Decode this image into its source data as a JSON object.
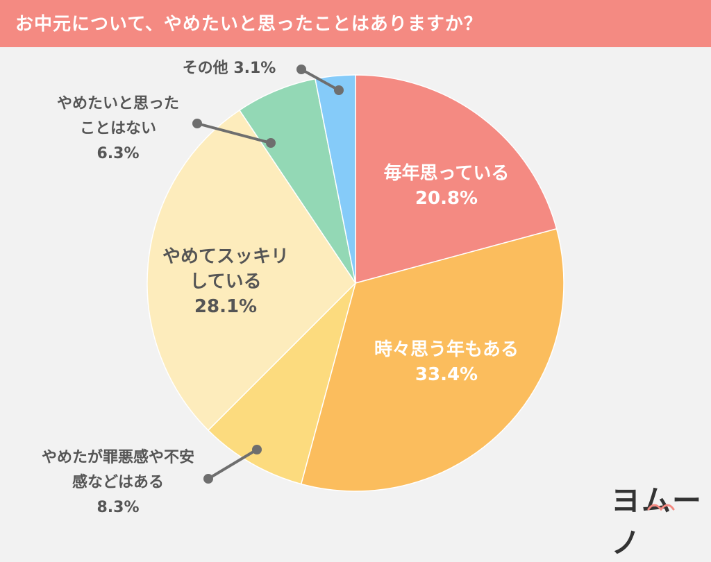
{
  "header": {
    "title": "お中元について、やめたいと思ったことはありますか？"
  },
  "chart_data": {
    "type": "pie",
    "title": "お中元について、やめたいと思ったことはありますか？",
    "start": "12 o'clock",
    "direction": "clockwise",
    "slices": [
      {
        "label": [
          "毎年思っている"
        ],
        "value": 20.8,
        "value_label": "20.8%",
        "color": "#f48a82",
        "label_color": "#ffffff",
        "label_placement": "inside"
      },
      {
        "label": [
          "時々思う年もある"
        ],
        "value": 33.4,
        "value_label": "33.4%",
        "color": "#fbbd5d",
        "label_color": "#ffffff",
        "label_placement": "inside"
      },
      {
        "label": [
          "やめたが罪悪感や不安",
          "感などはある"
        ],
        "value": 8.3,
        "value_label": "8.3%",
        "color": "#fcdb7e",
        "label_color": "#555555",
        "label_placement": "outside-leader"
      },
      {
        "label": [
          "やめてスッキリ",
          "している"
        ],
        "value": 28.1,
        "value_label": "28.1%",
        "color": "#fdecbc",
        "label_color": "#555555",
        "label_placement": "inside"
      },
      {
        "label": [
          "やめたいと思った",
          "ことはない"
        ],
        "value": 6.3,
        "value_label": "6.3%",
        "color": "#93d8b5",
        "label_color": "#555555",
        "label_placement": "outside-leader"
      },
      {
        "label": [
          "その他"
        ],
        "value": 3.1,
        "value_label": "3.1%",
        "color": "#85cbf9",
        "label_color": "#555555",
        "label_placement": "outside-leader-inline"
      }
    ]
  },
  "brand": {
    "text": "ヨムーノ",
    "accent": "#f48a82"
  }
}
